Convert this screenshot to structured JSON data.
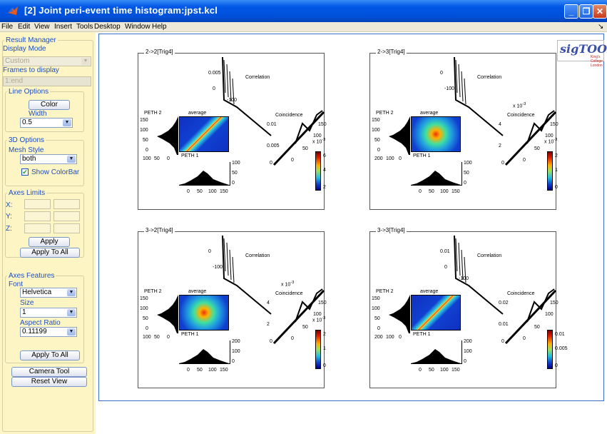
{
  "window": {
    "title": "[2] Joint peri-event time histogram:jpst.kcl",
    "minimize": "_",
    "restore": "❐",
    "close": "✕"
  },
  "menu": [
    "File",
    "Edit",
    "View",
    "Insert",
    "Tools",
    "Desktop",
    "Window",
    "Help"
  ],
  "menu_arrow": "↘",
  "sidebar": {
    "result_manager": "Result Manager",
    "display_mode_label": "Display Mode",
    "display_mode_value": "Custom",
    "frames_label": "Frames to display",
    "frames_value": "1:end",
    "line_options": "Line Options",
    "color_button": "Color",
    "width_label": "Width",
    "width_value": "0.5",
    "options3d": "3D Options",
    "mesh_style_label": "Mesh Style",
    "mesh_style_value": "both",
    "show_colorbar": "Show ColorBar",
    "axes_limits": "Axes Limits",
    "x_label": "X:",
    "y_label": "Y:",
    "z_label": "Z:",
    "apply_button": "Apply",
    "apply_all_button": "Apply To All",
    "axes_features": "Axes Features",
    "font_label": "Font",
    "font_value": "Helvetica",
    "size_label": "Size",
    "size_value": "1",
    "aspect_label": "Aspect Ratio",
    "aspect_value": "0.11199",
    "apply_all_button2": "Apply To All",
    "camera_tool": "Camera Tool",
    "reset_view": "Reset View"
  },
  "logo": {
    "text": "sigTOOL",
    "sub": "King's College London"
  },
  "panels": [
    {
      "title": "2->2[Trig4]",
      "corr_ticks": [
        "0.005",
        "0",
        "-100"
      ],
      "coinc_ticks": [
        "0.01",
        "0.005",
        "0"
      ],
      "coinc_bottom": [
        "0",
        "50",
        "100",
        "150"
      ],
      "cb_exp": "x 10",
      "cb_exp_pow": "-3",
      "cb_ticks": [
        "6",
        "4",
        "2"
      ],
      "coinc_exp": "",
      "coinc_exp_pow": ""
    },
    {
      "title": "2->3[Trig4]",
      "corr_ticks": [
        "0",
        "-100"
      ],
      "coinc_ticks": [
        "4",
        "2",
        "0"
      ],
      "coinc_bottom": [
        "0",
        "50",
        "100",
        "150"
      ],
      "cb_exp": "x 10",
      "cb_exp_pow": "-3",
      "cb_ticks": [
        "2",
        "1",
        "0"
      ],
      "coinc_exp": "x 10",
      "coinc_exp_pow": "-3"
    },
    {
      "title": "3->2[Trig4]",
      "corr_ticks": [
        "0",
        "-100"
      ],
      "coinc_ticks": [
        "4",
        "2",
        "0"
      ],
      "coinc_bottom": [
        "0",
        "50",
        "100",
        "150"
      ],
      "cb_exp": "x 10",
      "cb_exp_pow": "-3",
      "cb_ticks": [
        "2",
        "1",
        "0"
      ],
      "coinc_exp": "x 10",
      "coinc_exp_pow": "-3"
    },
    {
      "title": "3->3[Trig4]",
      "corr_ticks": [
        "0.01",
        "0",
        "-100"
      ],
      "coinc_ticks": [
        "0.02",
        "0.01",
        "0"
      ],
      "coinc_bottom": [
        "0",
        "50",
        "100",
        "150"
      ],
      "cb_exp": "",
      "cb_exp_pow": "",
      "cb_ticks": [
        "0.01",
        "0.005",
        "0"
      ],
      "coinc_exp": "",
      "coinc_exp_pow": ""
    }
  ],
  "panel_labels": {
    "correlation": "Correlation",
    "coincidence": "Coincidence",
    "average": "average",
    "peth2": "PETH 2",
    "peth1": "PETH 1"
  },
  "panel_axes": [
    {
      "peth2_ticks": [
        "150",
        "100",
        "50",
        "0"
      ],
      "peth2_x": [
        "100",
        "50",
        "0"
      ],
      "peth1_right": [
        "100",
        "50",
        "0"
      ],
      "peth1_bottom": [
        "0",
        "50",
        "100",
        "150"
      ]
    },
    {
      "peth2_ticks": [
        "150",
        "100",
        "50",
        "0"
      ],
      "peth2_x": [
        "200",
        "100",
        "0"
      ],
      "peth1_right": [
        "100",
        "50",
        "0"
      ],
      "peth1_bottom": [
        "0",
        "50",
        "100",
        "150"
      ]
    },
    {
      "peth2_ticks": [
        "150",
        "100",
        "50",
        "0"
      ],
      "peth2_x": [
        "100",
        "50",
        "0"
      ],
      "peth1_right": [
        "200",
        "100",
        "0"
      ],
      "peth1_bottom": [
        "0",
        "50",
        "100",
        "150"
      ]
    },
    {
      "peth2_ticks": [
        "150",
        "100",
        "50",
        "0"
      ],
      "peth2_x": [
        "200",
        "100",
        "0"
      ],
      "peth1_right": [
        "200",
        "100",
        "0"
      ],
      "peth1_bottom": [
        "0",
        "50",
        "100",
        "150"
      ]
    }
  ]
}
